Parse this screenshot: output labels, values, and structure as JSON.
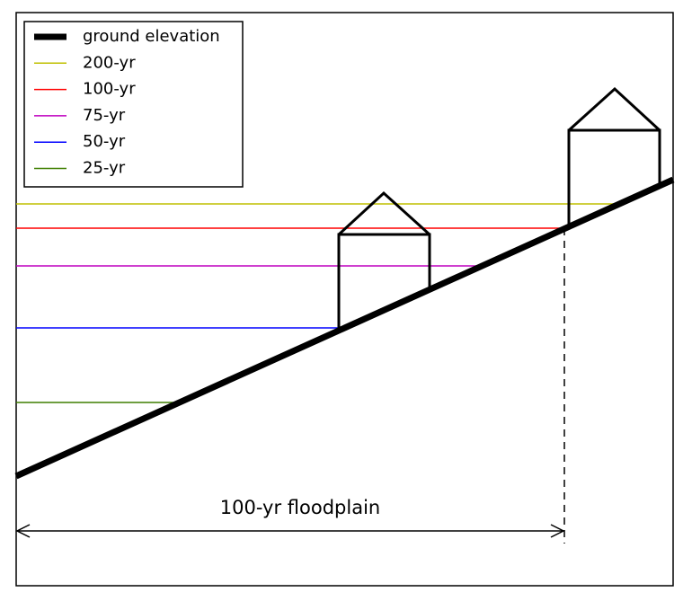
{
  "legend": {
    "items": [
      {
        "label": "ground elevation",
        "color": "#000000"
      },
      {
        "label": "200-yr",
        "color": "#bfbf00"
      },
      {
        "label": "100-yr",
        "color": "#ff0000"
      },
      {
        "label": "75-yr",
        "color": "#bf00bf"
      },
      {
        "label": "50-yr",
        "color": "#0000ff"
      },
      {
        "label": "25-yr",
        "color": "#3f7f00"
      }
    ]
  },
  "annotation": {
    "floodplain": "100-yr floodplain"
  }
}
